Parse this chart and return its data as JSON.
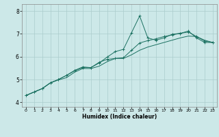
{
  "xlabel": "Humidex (Indice chaleur)",
  "bg_color": "#cce8e8",
  "grid_color": "#aacccc",
  "line_color": "#1a7060",
  "xlim": [
    -0.5,
    23.5
  ],
  "ylim": [
    3.8,
    8.3
  ],
  "xticks": [
    0,
    1,
    2,
    3,
    4,
    5,
    6,
    7,
    8,
    9,
    10,
    11,
    12,
    13,
    14,
    15,
    16,
    17,
    18,
    19,
    20,
    21,
    22,
    23
  ],
  "yticks": [
    4,
    5,
    6,
    7,
    8
  ],
  "x": [
    0,
    1,
    2,
    3,
    4,
    5,
    6,
    7,
    8,
    9,
    10,
    11,
    12,
    13,
    14,
    15,
    16,
    17,
    18,
    19,
    20,
    21,
    22,
    23
  ],
  "line1": [
    4.3,
    4.45,
    4.6,
    4.85,
    5.0,
    5.18,
    5.38,
    5.52,
    5.52,
    5.72,
    5.98,
    6.22,
    6.32,
    7.05,
    7.78,
    6.82,
    6.72,
    6.82,
    6.98,
    7.02,
    7.12,
    6.82,
    6.62,
    6.62
  ],
  "line2": [
    4.3,
    4.45,
    4.6,
    4.85,
    5.0,
    5.18,
    5.4,
    5.55,
    5.52,
    5.75,
    5.88,
    5.92,
    5.95,
    6.28,
    6.6,
    6.7,
    6.78,
    6.88,
    6.95,
    7.02,
    7.08,
    6.88,
    6.68,
    6.62
  ],
  "line3": [
    4.3,
    4.45,
    4.6,
    4.85,
    4.98,
    5.08,
    5.32,
    5.48,
    5.48,
    5.58,
    5.78,
    5.92,
    5.92,
    6.08,
    6.28,
    6.42,
    6.52,
    6.62,
    6.72,
    6.82,
    6.9,
    6.88,
    6.72,
    6.62
  ]
}
